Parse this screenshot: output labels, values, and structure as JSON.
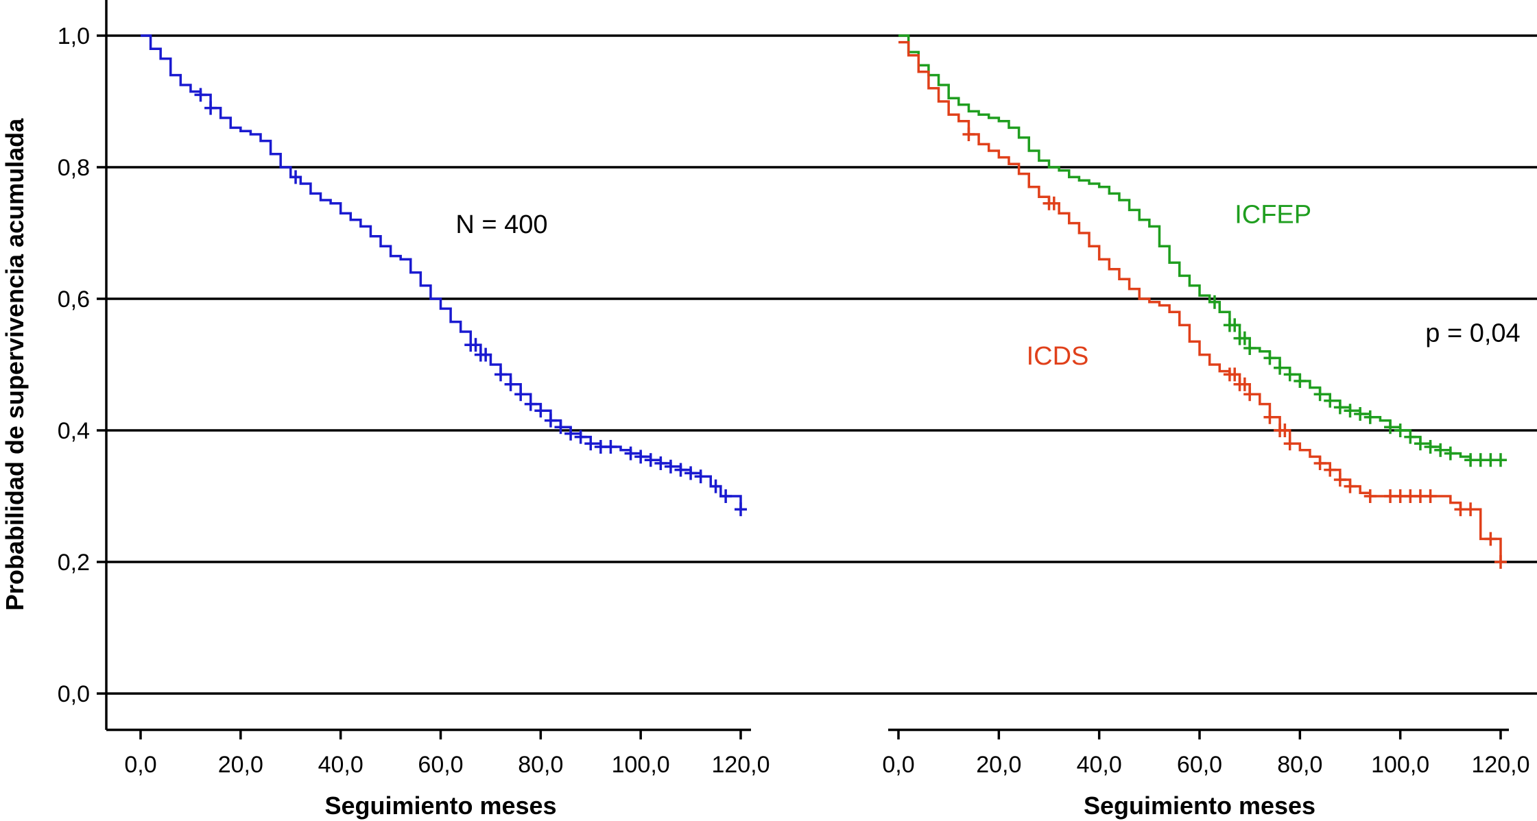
{
  "chart_data": {
    "type": "line",
    "ylabel": "Probabilidad de supervivencia acumulada",
    "ylim": [
      0,
      1
    ],
    "yticks": [
      0.0,
      0.2,
      0.4,
      0.6,
      0.8,
      1.0
    ],
    "ytick_labels": [
      "0,0",
      "0,2",
      "0,4",
      "0,6",
      "0,8",
      "1,0"
    ],
    "grid": true,
    "colors": {
      "overall": "#1a1ad0",
      "icfep": "#1f9e1f",
      "icds": "#e0401a"
    },
    "panels": [
      {
        "xlabel": "Seguimiento meses",
        "xlim": [
          0,
          120
        ],
        "xticks": [
          0,
          20,
          40,
          60,
          80,
          100,
          120
        ],
        "xtick_labels": [
          "0,0",
          "20,0",
          "40,0",
          "60,0",
          "80,0",
          "100,0",
          "120,0"
        ],
        "annotations": [
          {
            "text": "N = 400",
            "x": 63,
            "y": 0.7,
            "color": "#000000"
          }
        ],
        "series": [
          {
            "key": "overall",
            "color": "#1a1ad0",
            "points": [
              [
                0,
                1.0
              ],
              [
                2,
                0.98
              ],
              [
                4,
                0.965
              ],
              [
                6,
                0.94
              ],
              [
                8,
                0.925
              ],
              [
                10,
                0.915
              ],
              [
                12,
                0.91
              ],
              [
                14,
                0.89
              ],
              [
                16,
                0.875
              ],
              [
                18,
                0.86
              ],
              [
                20,
                0.855
              ],
              [
                22,
                0.85
              ],
              [
                24,
                0.84
              ],
              [
                26,
                0.82
              ],
              [
                28,
                0.8
              ],
              [
                30,
                0.785
              ],
              [
                32,
                0.775
              ],
              [
                34,
                0.76
              ],
              [
                36,
                0.75
              ],
              [
                38,
                0.745
              ],
              [
                40,
                0.73
              ],
              [
                42,
                0.72
              ],
              [
                44,
                0.71
              ],
              [
                46,
                0.695
              ],
              [
                48,
                0.68
              ],
              [
                50,
                0.665
              ],
              [
                52,
                0.66
              ],
              [
                54,
                0.64
              ],
              [
                56,
                0.62
              ],
              [
                58,
                0.6
              ],
              [
                60,
                0.585
              ],
              [
                62,
                0.565
              ],
              [
                64,
                0.55
              ],
              [
                66,
                0.53
              ],
              [
                68,
                0.515
              ],
              [
                70,
                0.5
              ],
              [
                72,
                0.485
              ],
              [
                74,
                0.47
              ],
              [
                76,
                0.455
              ],
              [
                78,
                0.44
              ],
              [
                80,
                0.43
              ],
              [
                82,
                0.415
              ],
              [
                84,
                0.405
              ],
              [
                86,
                0.395
              ],
              [
                88,
                0.39
              ],
              [
                90,
                0.38
              ],
              [
                92,
                0.375
              ],
              [
                94,
                0.375
              ],
              [
                96,
                0.37
              ],
              [
                98,
                0.365
              ],
              [
                100,
                0.36
              ],
              [
                102,
                0.355
              ],
              [
                104,
                0.35
              ],
              [
                106,
                0.345
              ],
              [
                108,
                0.34
              ],
              [
                110,
                0.335
              ],
              [
                112,
                0.33
              ],
              [
                114,
                0.315
              ],
              [
                116,
                0.3
              ],
              [
                118,
                0.3
              ],
              [
                120,
                0.28
              ]
            ],
            "censor": [
              12,
              14,
              31,
              66,
              67,
              68,
              69,
              72,
              74,
              76,
              78,
              80,
              82,
              84,
              86,
              88,
              90,
              92,
              94,
              98,
              100,
              102,
              104,
              106,
              108,
              110,
              112,
              115,
              117,
              120
            ]
          }
        ]
      },
      {
        "xlabel": "Seguimiento meses",
        "xlim": [
          0,
          120
        ],
        "xticks": [
          0,
          20,
          40,
          60,
          80,
          100,
          120
        ],
        "xtick_labels": [
          "0,0",
          "20,0",
          "40,0",
          "60,0",
          "80,0",
          "100,0",
          "120,0"
        ],
        "annotations": [
          {
            "text": "ICFEP",
            "x": 67,
            "y": 0.715,
            "color": "#1f9e1f"
          },
          {
            "text": "ICDS",
            "x": 25.5,
            "y": 0.5,
            "color": "#e0401a"
          },
          {
            "text": "p = 0,04",
            "x": 105,
            "y": 0.535,
            "color": "#000000"
          }
        ],
        "series": [
          {
            "key": "icfep",
            "name": "ICFEP",
            "color": "#1f9e1f",
            "points": [
              [
                0,
                1.0
              ],
              [
                2,
                0.975
              ],
              [
                4,
                0.955
              ],
              [
                6,
                0.94
              ],
              [
                8,
                0.925
              ],
              [
                10,
                0.905
              ],
              [
                12,
                0.895
              ],
              [
                14,
                0.885
              ],
              [
                16,
                0.88
              ],
              [
                18,
                0.875
              ],
              [
                20,
                0.87
              ],
              [
                22,
                0.86
              ],
              [
                24,
                0.845
              ],
              [
                26,
                0.825
              ],
              [
                28,
                0.81
              ],
              [
                30,
                0.8
              ],
              [
                32,
                0.795
              ],
              [
                34,
                0.785
              ],
              [
                36,
                0.78
              ],
              [
                38,
                0.775
              ],
              [
                40,
                0.77
              ],
              [
                42,
                0.76
              ],
              [
                44,
                0.75
              ],
              [
                46,
                0.735
              ],
              [
                48,
                0.72
              ],
              [
                50,
                0.71
              ],
              [
                52,
                0.68
              ],
              [
                54,
                0.655
              ],
              [
                56,
                0.635
              ],
              [
                58,
                0.62
              ],
              [
                60,
                0.605
              ],
              [
                62,
                0.595
              ],
              [
                64,
                0.58
              ],
              [
                66,
                0.56
              ],
              [
                68,
                0.54
              ],
              [
                70,
                0.525
              ],
              [
                72,
                0.52
              ],
              [
                74,
                0.51
              ],
              [
                76,
                0.495
              ],
              [
                78,
                0.485
              ],
              [
                80,
                0.475
              ],
              [
                82,
                0.465
              ],
              [
                84,
                0.455
              ],
              [
                86,
                0.445
              ],
              [
                88,
                0.435
              ],
              [
                90,
                0.43
              ],
              [
                92,
                0.425
              ],
              [
                94,
                0.42
              ],
              [
                96,
                0.415
              ],
              [
                98,
                0.405
              ],
              [
                100,
                0.4
              ],
              [
                102,
                0.39
              ],
              [
                104,
                0.38
              ],
              [
                106,
                0.375
              ],
              [
                108,
                0.37
              ],
              [
                110,
                0.365
              ],
              [
                112,
                0.36
              ],
              [
                114,
                0.355
              ],
              [
                116,
                0.355
              ],
              [
                118,
                0.355
              ],
              [
                120,
                0.355
              ]
            ],
            "censor": [
              63,
              66,
              67,
              68,
              69,
              70,
              74,
              76,
              78,
              80,
              84,
              86,
              88,
              90,
              92,
              94,
              98,
              100,
              102,
              104,
              106,
              108,
              110,
              114,
              116,
              118,
              120
            ]
          },
          {
            "key": "icds",
            "name": "ICDS",
            "color": "#e0401a",
            "points": [
              [
                0,
                0.99
              ],
              [
                2,
                0.97
              ],
              [
                4,
                0.945
              ],
              [
                6,
                0.92
              ],
              [
                8,
                0.9
              ],
              [
                10,
                0.88
              ],
              [
                12,
                0.87
              ],
              [
                14,
                0.85
              ],
              [
                16,
                0.835
              ],
              [
                18,
                0.825
              ],
              [
                20,
                0.815
              ],
              [
                22,
                0.805
              ],
              [
                24,
                0.79
              ],
              [
                26,
                0.77
              ],
              [
                28,
                0.755
              ],
              [
                30,
                0.745
              ],
              [
                32,
                0.73
              ],
              [
                34,
                0.715
              ],
              [
                36,
                0.7
              ],
              [
                38,
                0.68
              ],
              [
                40,
                0.66
              ],
              [
                42,
                0.645
              ],
              [
                44,
                0.63
              ],
              [
                46,
                0.615
              ],
              [
                48,
                0.6
              ],
              [
                50,
                0.595
              ],
              [
                52,
                0.59
              ],
              [
                54,
                0.58
              ],
              [
                56,
                0.56
              ],
              [
                58,
                0.535
              ],
              [
                60,
                0.515
              ],
              [
                62,
                0.5
              ],
              [
                64,
                0.49
              ],
              [
                66,
                0.485
              ],
              [
                68,
                0.47
              ],
              [
                70,
                0.455
              ],
              [
                72,
                0.44
              ],
              [
                74,
                0.42
              ],
              [
                76,
                0.4
              ],
              [
                78,
                0.38
              ],
              [
                80,
                0.37
              ],
              [
                82,
                0.36
              ],
              [
                84,
                0.35
              ],
              [
                86,
                0.34
              ],
              [
                88,
                0.325
              ],
              [
                90,
                0.315
              ],
              [
                92,
                0.305
              ],
              [
                94,
                0.3
              ],
              [
                96,
                0.3
              ],
              [
                98,
                0.3
              ],
              [
                100,
                0.3
              ],
              [
                102,
                0.3
              ],
              [
                104,
                0.3
              ],
              [
                106,
                0.3
              ],
              [
                108,
                0.3
              ],
              [
                110,
                0.29
              ],
              [
                112,
                0.28
              ],
              [
                114,
                0.28
              ],
              [
                116,
                0.235
              ],
              [
                118,
                0.235
              ],
              [
                120,
                0.2
              ]
            ],
            "censor": [
              14,
              30,
              31,
              66,
              67,
              68,
              69,
              70,
              74,
              76,
              77,
              78,
              84,
              86,
              88,
              90,
              94,
              98,
              100,
              102,
              104,
              106,
              112,
              114,
              118,
              120
            ]
          }
        ]
      }
    ]
  }
}
